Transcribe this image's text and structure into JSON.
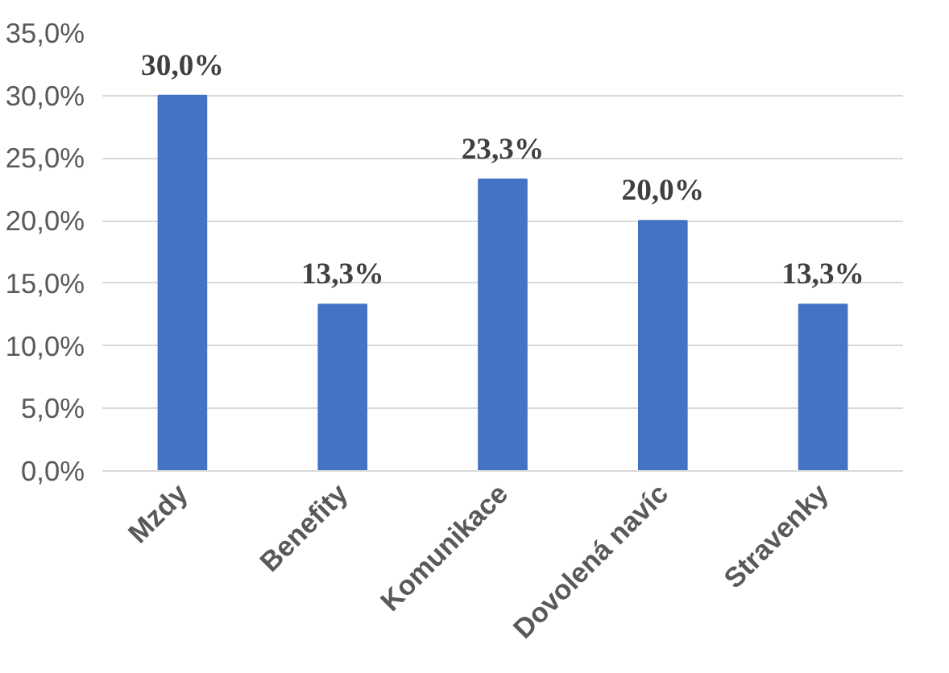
{
  "chart_data": {
    "type": "bar",
    "categories": [
      "Mzdy",
      "Benefity",
      "Komunikace",
      "Dovolená navíc",
      "Stravenky"
    ],
    "values": [
      30.0,
      13.3,
      23.3,
      20.0,
      13.3
    ],
    "value_labels": [
      "30,0%",
      "13,3%",
      "23,3%",
      "20,0%",
      "13,3%"
    ],
    "color": "#4472c4",
    "ylim": [
      0,
      35
    ],
    "yticks": [
      {
        "value": 0,
        "label": "0,0%"
      },
      {
        "value": 5,
        "label": "5,0%"
      },
      {
        "value": 10,
        "label": "10,0%"
      },
      {
        "value": 15,
        "label": "15,0%"
      },
      {
        "value": 20,
        "label": "20,0%"
      },
      {
        "value": 25,
        "label": "25,0%"
      },
      {
        "value": 30,
        "label": "30,0%"
      },
      {
        "value": 35,
        "label": "35,0%"
      }
    ],
    "grid": "y"
  }
}
